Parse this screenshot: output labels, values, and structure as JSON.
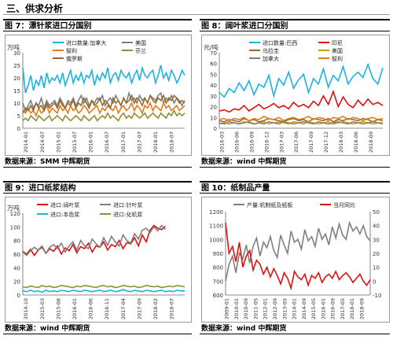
{
  "section": {
    "title": "三、供求分析"
  },
  "colors": {
    "teal": "#1ab2e0",
    "orange": "#e57b17",
    "brown": "#9a6a2a",
    "gray": "#7f7f7f",
    "olive": "#8f8f30",
    "red": "#e01010",
    "darkred": "#c00000",
    "black": "#333333",
    "goldenrod": "#c8a000"
  },
  "panels": [
    {
      "header": "图 7：漂针浆进口分国别",
      "source_label": "数据来源：SMM",
      "source_brand": "中辉期货"
    },
    {
      "header": "图 8：阔叶浆进口分国别",
      "source_label": "数据来源：wind",
      "source_brand": "中辉期货"
    },
    {
      "header": "图 9：进口纸浆结构",
      "source_label": "数据来源：wind",
      "source_brand": "中辉期货"
    },
    {
      "header": "图 10：纸制品产量",
      "source_label": "数据来源：wind",
      "source_brand": "中辉期货"
    }
  ],
  "chart_data": [
    {
      "type": "line",
      "title": "",
      "ylabel": "万吨",
      "ylim": [
        0,
        30
      ],
      "yticks": [
        0,
        5,
        10,
        15,
        20,
        25,
        30
      ],
      "xticks": [
        "2014-01",
        "2014-07",
        "2015-01",
        "2015-07",
        "2016-01",
        "2016-07",
        "2017-01",
        "2017-07",
        "2018-01",
        "2018-07"
      ],
      "legend": [
        "进口数量:加拿大",
        "美国",
        "智利",
        "芬兰",
        "俄罗斯"
      ],
      "series": [
        {
          "name": "进口数量:加拿大",
          "color": "teal",
          "values": [
            24,
            14,
            17,
            21,
            15,
            19,
            17,
            21,
            16,
            22,
            18,
            20,
            19,
            21,
            18,
            22,
            17,
            20,
            23,
            18,
            21,
            19,
            22,
            18,
            21,
            20,
            23,
            17,
            21,
            19,
            22,
            20,
            24,
            18,
            21,
            22,
            19,
            23,
            21,
            20,
            22,
            18,
            21,
            23,
            19,
            24,
            21,
            20,
            22,
            23,
            18,
            21,
            25,
            20,
            22,
            19,
            23,
            21,
            18,
            20,
            23,
            21
          ]
        },
        {
          "name": "美国",
          "color": "gray",
          "values": [
            10,
            7,
            9,
            11,
            8,
            10,
            9,
            12,
            8,
            11,
            9,
            10,
            11,
            9,
            12,
            10,
            8,
            11,
            10,
            12,
            9,
            11,
            13,
            10,
            12,
            9,
            11,
            10,
            12,
            11,
            13,
            9,
            11,
            12,
            10,
            13,
            11,
            9,
            12,
            10,
            14,
            11,
            12,
            10,
            13,
            11,
            12,
            10,
            13,
            12,
            11,
            13,
            14,
            10,
            12,
            11,
            13,
            10,
            12,
            11,
            9,
            11
          ]
        },
        {
          "name": "智利",
          "color": "orange",
          "values": [
            7,
            6,
            8,
            6,
            7,
            5,
            8,
            6,
            7,
            9,
            6,
            8,
            7,
            6,
            9,
            7,
            8,
            6,
            9,
            7,
            8,
            6,
            7,
            9,
            8,
            6,
            7,
            8,
            9,
            6,
            8,
            7,
            9,
            8,
            7,
            9,
            6,
            8,
            9,
            7,
            8,
            10,
            7,
            9,
            8,
            6,
            9,
            8,
            10,
            7,
            9,
            8,
            7,
            10,
            8,
            9,
            7,
            8,
            9,
            7,
            8,
            9
          ]
        },
        {
          "name": "芬兰",
          "color": "olive",
          "values": [
            3,
            4,
            3,
            5,
            4,
            3,
            5,
            4,
            3,
            4,
            5,
            3,
            4,
            5,
            4,
            3,
            5,
            4,
            3,
            4,
            5,
            4,
            3,
            5,
            4,
            3,
            4,
            5,
            3,
            4,
            5,
            4,
            6,
            4,
            5,
            4,
            3,
            5,
            6,
            4,
            5,
            4,
            6,
            5,
            4,
            5,
            6,
            4,
            5,
            6,
            5,
            4,
            6,
            5,
            4,
            6,
            5,
            7,
            5,
            6,
            5,
            6
          ]
        },
        {
          "name": "俄罗斯",
          "color": "brown",
          "values": [
            6,
            8,
            7,
            9,
            7,
            10,
            8,
            9,
            7,
            10,
            8,
            9,
            10,
            8,
            11,
            9,
            8,
            10,
            9,
            11,
            8,
            10,
            9,
            12,
            10,
            8,
            11,
            9,
            10,
            12,
            9,
            11,
            10,
            8,
            12,
            10,
            11,
            9,
            12,
            10,
            11,
            13,
            10,
            12,
            11,
            9,
            12,
            10,
            13,
            11,
            10,
            12,
            11,
            13,
            10,
            12,
            11,
            13,
            12,
            10,
            11,
            10
          ]
        }
      ]
    },
    {
      "type": "line",
      "title": "",
      "ylabel": "元/吨",
      "ylim": [
        0,
        70
      ],
      "yticks": [
        0,
        10,
        20,
        30,
        40,
        50,
        60,
        70
      ],
      "xticks": [
        "2016-03",
        "2016-06",
        "2016-09",
        "2016-12",
        "2017-03",
        "2017-06",
        "2017-09",
        "2017-12",
        "2018-03",
        "2018-06",
        "2018-09"
      ],
      "legend": [
        "进口数量:巴西",
        "印尼",
        "乌拉圭",
        "美国",
        "加拿大",
        "智利"
      ],
      "series": [
        {
          "name": "进口数量:巴西",
          "color": "teal",
          "values": [
            33,
            29,
            37,
            33,
            42,
            35,
            44,
            31,
            41,
            38,
            49,
            30,
            46,
            40,
            52,
            37,
            45,
            50,
            33,
            46,
            41,
            55,
            38,
            49,
            44,
            57,
            41,
            48,
            52,
            47,
            59,
            46,
            41,
            56
          ]
        },
        {
          "name": "印尼",
          "color": "red",
          "values": [
            16,
            17,
            15,
            18,
            17,
            21,
            16,
            19,
            22,
            18,
            20,
            23,
            19,
            21,
            18,
            24,
            20,
            22,
            19,
            25,
            21,
            30,
            22,
            34,
            20,
            29,
            22,
            19,
            26,
            21,
            27,
            22,
            24,
            21
          ]
        },
        {
          "name": "乌拉圭",
          "color": "brown",
          "values": [
            7,
            6,
            8,
            7,
            6,
            9,
            7,
            8,
            6,
            7,
            9,
            8,
            7,
            6,
            8,
            9,
            7,
            8,
            6,
            9,
            8,
            7,
            9,
            6,
            8,
            7,
            9,
            8,
            7,
            9,
            8,
            6,
            8,
            7
          ]
        },
        {
          "name": "美国",
          "color": "goldenrod",
          "values": [
            4,
            5,
            4,
            5,
            4,
            6,
            5,
            4,
            5,
            6,
            4,
            5,
            6,
            5,
            4,
            6,
            5,
            4,
            6,
            5,
            4,
            5,
            6,
            4,
            5,
            6,
            5,
            4,
            5,
            6,
            5,
            4,
            5,
            5
          ]
        },
        {
          "name": "加拿大",
          "color": "gray",
          "values": [
            5,
            4,
            6,
            5,
            4,
            5,
            6,
            4,
            5,
            4,
            6,
            5,
            4,
            6,
            5,
            4,
            5,
            6,
            5,
            4,
            6,
            5,
            4,
            5,
            6,
            5,
            4,
            6,
            5,
            4,
            5,
            6,
            5,
            4
          ]
        },
        {
          "name": "智利",
          "color": "orange",
          "values": [
            8,
            9,
            7,
            9,
            8,
            10,
            7,
            9,
            8,
            11,
            9,
            8,
            10,
            7,
            9,
            10,
            8,
            9,
            11,
            8,
            10,
            9,
            7,
            10,
            9,
            11,
            8,
            10,
            9,
            7,
            9,
            10,
            8,
            9
          ]
        }
      ]
    },
    {
      "type": "line",
      "title": "",
      "ylabel": "万吨",
      "ylim": [
        0,
        120
      ],
      "yticks": [
        0,
        20,
        40,
        60,
        80,
        100,
        120
      ],
      "xticks": [
        "2014-10",
        "2015-03",
        "2015-08",
        "2016-01",
        "2016-06",
        "2016-11",
        "2017-04",
        "2017-09",
        "2018-02",
        "2018-07"
      ],
      "legend": [
        "进口:阔叶浆",
        "进口:针叶浆",
        "进口:本色浆",
        "进口:化机浆"
      ],
      "series": [
        {
          "name": "进口:阔叶浆",
          "color": "red",
          "values": [
            64,
            60,
            67,
            58,
            66,
            70,
            61,
            68,
            64,
            72,
            60,
            69,
            65,
            74,
            62,
            71,
            68,
            76,
            63,
            72,
            70,
            78,
            66,
            74,
            71,
            80,
            68,
            77,
            75,
            84,
            72,
            88,
            78,
            95,
            102,
            98,
            96,
            101,
            null,
            null,
            null,
            null,
            105
          ]
        },
        {
          "name": "进口:针叶浆",
          "color": "gray",
          "values": [
            63,
            58,
            65,
            70,
            66,
            72,
            61,
            70,
            74,
            68,
            76,
            63,
            72,
            78,
            66,
            80,
            72,
            68,
            82,
            75,
            70,
            84,
            73,
            86,
            78,
            72,
            88,
            80,
            76,
            90,
            82,
            95,
            98,
            92,
            100,
            94,
            102,
            96,
            null,
            null,
            null,
            null,
            60
          ]
        },
        {
          "name": "进口:本色浆",
          "color": "teal",
          "values": [
            6,
            5,
            7,
            5,
            6,
            4,
            7,
            5,
            6,
            5,
            7,
            6,
            5,
            7,
            6,
            5,
            7,
            6,
            5,
            6,
            7,
            5,
            6,
            7,
            5,
            6,
            8,
            6,
            5,
            7,
            6,
            5,
            7,
            6,
            5,
            6,
            7,
            5,
            6,
            5,
            7,
            6,
            6
          ]
        },
        {
          "name": "进口:化机浆",
          "color": "olive",
          "values": [
            12,
            11,
            13,
            12,
            11,
            14,
            12,
            13,
            11,
            12,
            14,
            13,
            12,
            11,
            13,
            12,
            14,
            13,
            12,
            11,
            13,
            14,
            12,
            13,
            11,
            12,
            14,
            13,
            12,
            13,
            11,
            12,
            14,
            13,
            12,
            13,
            11,
            12,
            13,
            12,
            14,
            13,
            12
          ]
        }
      ]
    },
    {
      "type": "line",
      "title": "",
      "ylabel": "",
      "ylim": [
        600,
        1200
      ],
      "yticks": [
        600,
        700,
        800,
        900,
        1000,
        1100,
        1200
      ],
      "y2lim": [
        -10,
        50
      ],
      "y2ticks": [
        -10,
        0,
        10,
        20,
        30,
        40,
        50
      ],
      "xticks": [
        "2009-01",
        "2010-01",
        "2010-09",
        "2011-05",
        "2012-01",
        "2012-09",
        "2013-05",
        "2014-01",
        "2014-09",
        "2015-05",
        "2016-01",
        "2016-09",
        "2017-05",
        "2018-01",
        "2018-09"
      ],
      "legend": [
        "产量:机制纸及纸板",
        "当月同比"
      ],
      "series": [
        {
          "name": "产量:机制纸及纸板",
          "color": "gray",
          "axis": "left",
          "values": [
            700,
            820,
            880,
            760,
            900,
            860,
            960,
            830,
            950,
            1010,
            880,
            980,
            940,
            1020,
            920,
            870,
            1030,
            960,
            900,
            1060,
            980,
            1000,
            930,
            1070,
            990,
            1020,
            950,
            1080,
            1000,
            1040,
            960,
            1090,
            1010,
            1110,
            1030,
            1000,
            1120,
            1060,
            1090,
            1040,
            1100,
            1020,
            990
          ]
        },
        {
          "name": "当月同比",
          "color": "red",
          "axis": "right",
          "values": [
            42,
            20,
            25,
            14,
            28,
            10,
            18,
            22,
            8,
            15,
            12,
            5,
            10,
            3,
            9,
            4,
            -2,
            6,
            2,
            -5,
            7,
            3,
            1,
            5,
            -3,
            4,
            2,
            6,
            -1,
            3,
            5,
            2,
            7,
            1,
            4,
            6,
            3,
            -1,
            2,
            5,
            0,
            -3,
            1
          ]
        }
      ]
    }
  ]
}
